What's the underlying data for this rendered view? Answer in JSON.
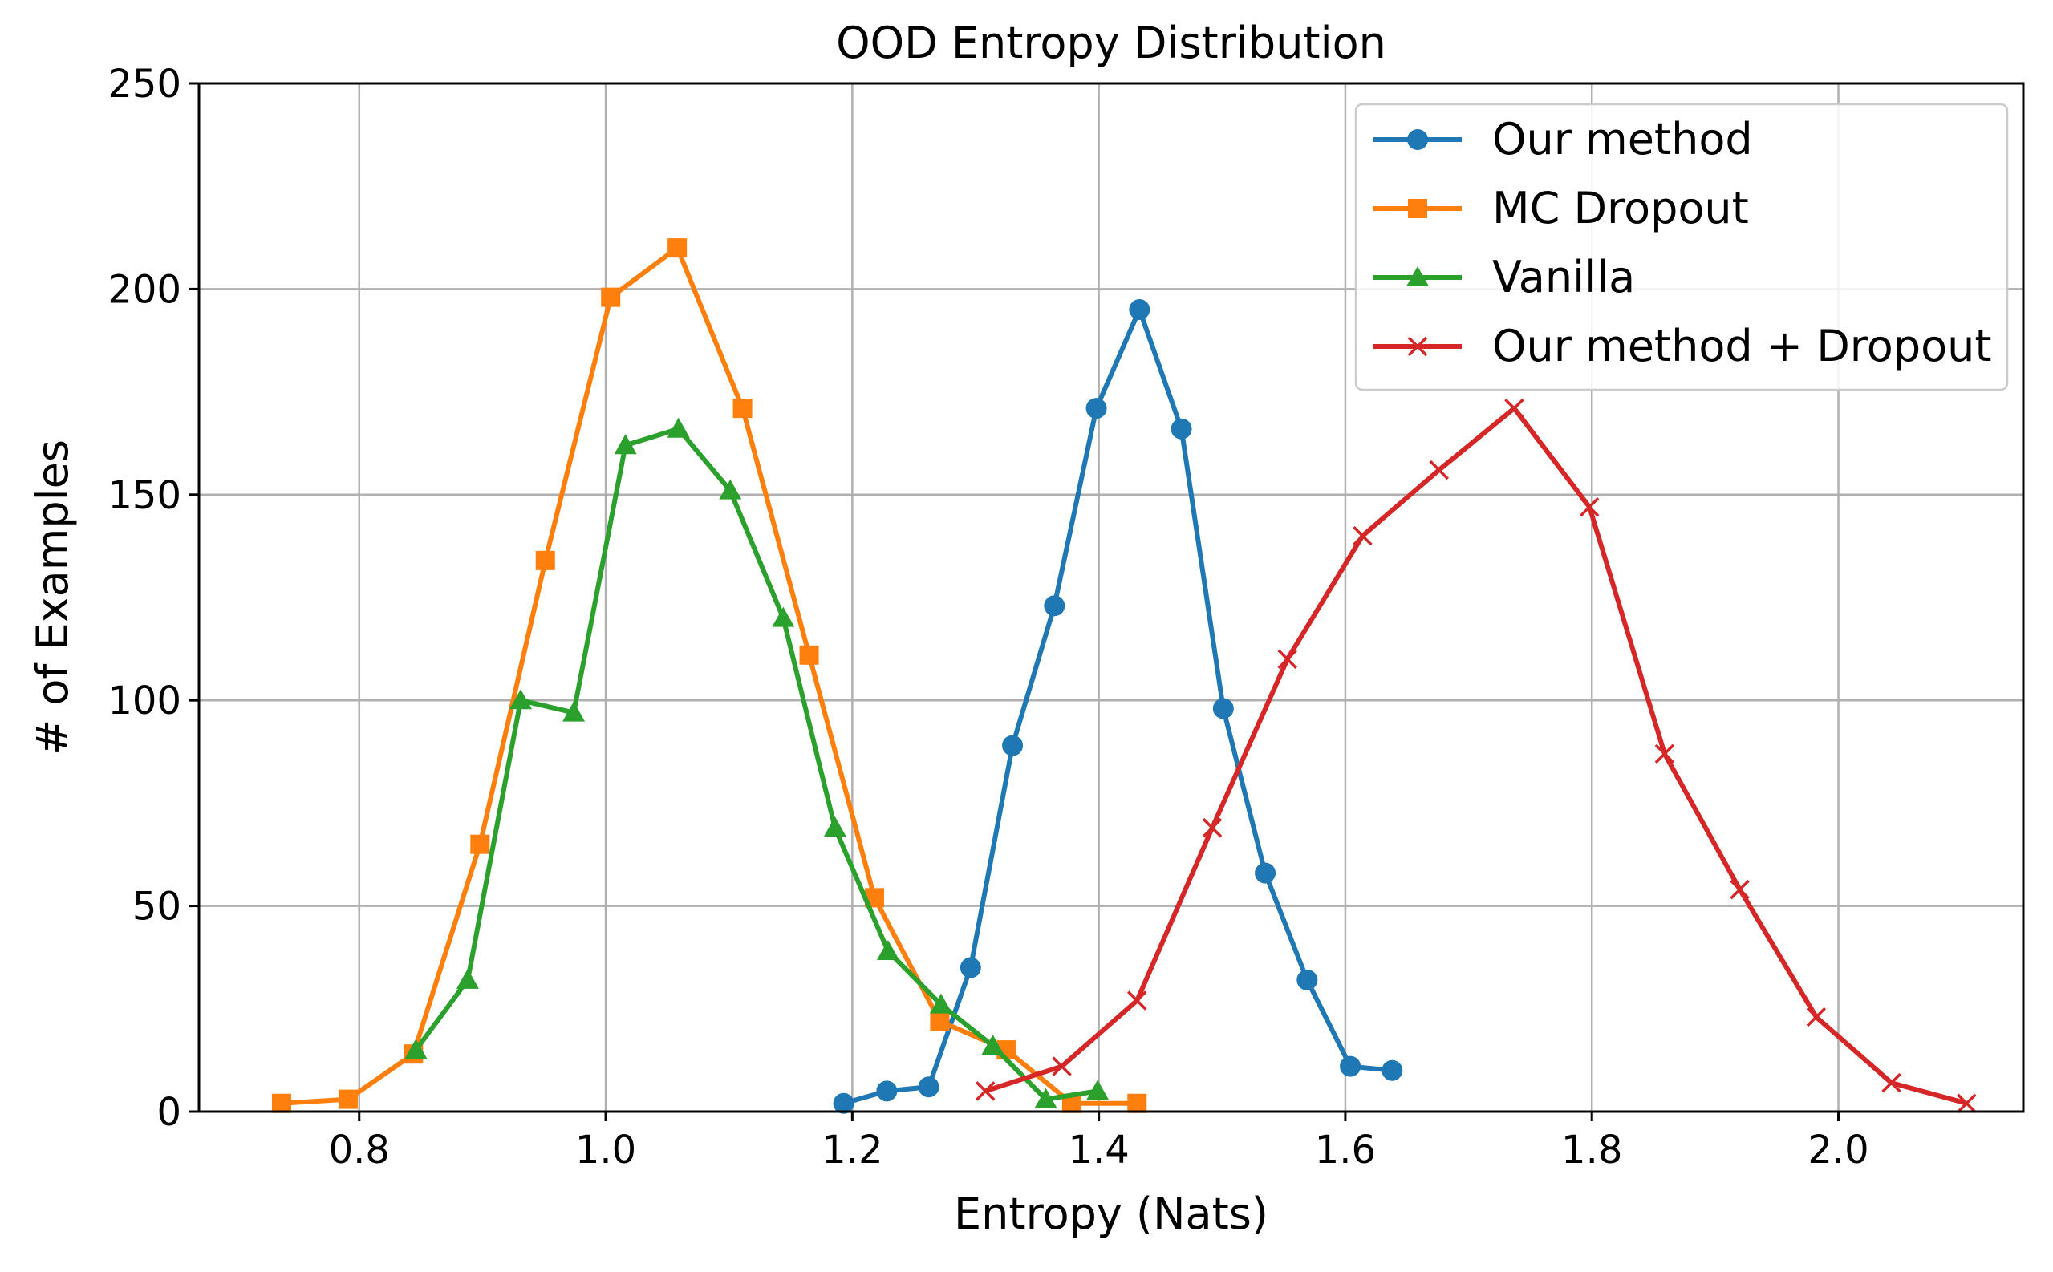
{
  "chart_data": {
    "type": "line",
    "title": "OOD Entropy Distribution",
    "xlabel": "Entropy (Nats)",
    "ylabel": "# of Examples",
    "xlim": [
      0.67,
      2.15
    ],
    "ylim": [
      0,
      250
    ],
    "xticks": [
      "0.8",
      "1.0",
      "1.2",
      "1.4",
      "1.6",
      "1.8",
      "2.0"
    ],
    "yticks": [
      "0",
      "50",
      "100",
      "150",
      "200",
      "250"
    ],
    "grid": true,
    "legend_position": "top-right",
    "series": [
      {
        "name": "Our method",
        "color": "#1f77b4",
        "marker": "circle",
        "x": [
          1.193,
          1.228,
          1.262,
          1.296,
          1.33,
          1.364,
          1.398,
          1.433,
          1.467,
          1.501,
          1.535,
          1.569,
          1.604,
          1.638
        ],
        "y": [
          2,
          5,
          6,
          35,
          89,
          123,
          171,
          195,
          166,
          98,
          58,
          32,
          11,
          10
        ]
      },
      {
        "name": "MC Dropout",
        "color": "#ff7f0e",
        "marker": "square",
        "x": [
          0.737,
          0.791,
          0.844,
          0.898,
          0.951,
          1.004,
          1.058,
          1.111,
          1.165,
          1.218,
          1.271,
          1.325,
          1.378,
          1.431
        ],
        "y": [
          2,
          3,
          14,
          65,
          134,
          198,
          210,
          171,
          111,
          52,
          22,
          15,
          2,
          2
        ]
      },
      {
        "name": "Vanilla",
        "color": "#2ca02c",
        "marker": "triangle",
        "x": [
          0.846,
          0.888,
          0.931,
          0.974,
          1.016,
          1.059,
          1.101,
          1.144,
          1.186,
          1.229,
          1.272,
          1.314,
          1.357,
          1.399
        ],
        "y": [
          15,
          32,
          100,
          97,
          162,
          166,
          151,
          120,
          69,
          39,
          26,
          16,
          3,
          5
        ]
      },
      {
        "name": "Our method + Dropout",
        "color": "#d62728",
        "marker": "x",
        "x": [
          1.308,
          1.37,
          1.431,
          1.492,
          1.553,
          1.614,
          1.676,
          1.737,
          1.798,
          1.859,
          1.92,
          1.982,
          2.043,
          2.104
        ],
        "y": [
          5,
          11,
          27,
          69,
          110,
          140,
          156,
          171,
          147,
          87,
          54,
          23,
          7,
          2
        ]
      }
    ]
  }
}
